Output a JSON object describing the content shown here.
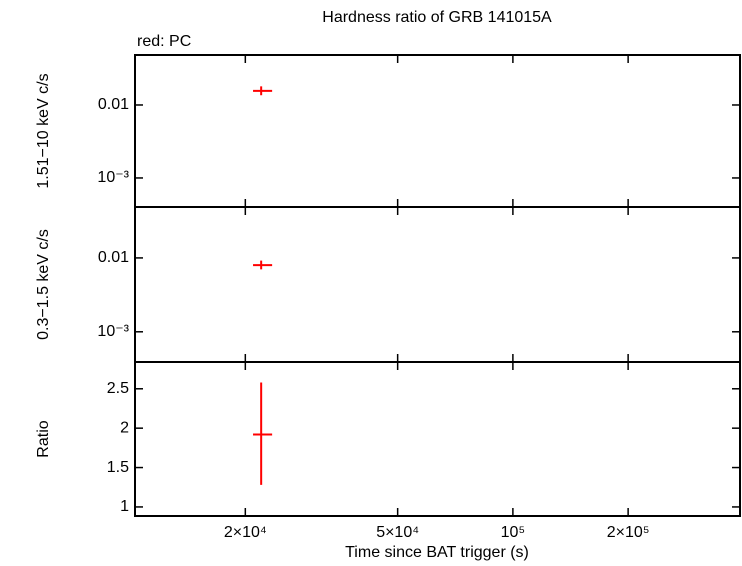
{
  "chart_data": [
    {
      "type": "scatter",
      "title": "Hardness ratio of GRB 141015A",
      "annotation": "red: PC",
      "ylabel": "1.51−10 keV c/s",
      "log_y": true,
      "ylim": [
        0.0004,
        0.0484
      ],
      "yticks": [
        0.01,
        {
          "value": 0.001,
          "label": "10⁻³"
        }
      ],
      "xlim": [
        10300,
        392000
      ],
      "series": [
        {
          "color": "#ff0000",
          "x": [
            22000
          ],
          "x_low": [
            20950
          ],
          "x_high": [
            23500
          ],
          "values": [
            0.0156
          ],
          "y_low": [
            0.0136
          ],
          "y_high": [
            0.018
          ]
        }
      ]
    },
    {
      "type": "scatter",
      "ylabel": "0.3−1.5 keV c/s",
      "log_y": true,
      "ylim": [
        0.00039,
        0.0489
      ],
      "yticks": [
        0.01,
        {
          "value": 0.001,
          "label": "10⁻³"
        }
      ],
      "xlim": [
        10300,
        392000
      ],
      "series": [
        {
          "color": "#ff0000",
          "x": [
            22000
          ],
          "x_low": [
            20950
          ],
          "x_high": [
            23500
          ],
          "values": [
            0.008
          ],
          "y_low": [
            0.007
          ],
          "y_high": [
            0.0092
          ]
        }
      ]
    },
    {
      "type": "scatter",
      "ylabel": "Ratio",
      "xlabel": "Time since BAT trigger (s)",
      "log_y": false,
      "ylim": [
        0.885,
        2.84
      ],
      "yticks": [
        1,
        1.5,
        2,
        2.5
      ],
      "log_x": true,
      "xlim": [
        10300,
        392000
      ],
      "xticks": [
        {
          "value": 20000,
          "label": "2×10⁴"
        },
        {
          "value": 50000,
          "label": "5×10⁴"
        },
        {
          "value": 100000,
          "label": "10⁵"
        },
        {
          "value": 200000,
          "label": "2×10⁵"
        }
      ],
      "series": [
        {
          "color": "#ff0000",
          "x": [
            22000
          ],
          "x_low": [
            20950
          ],
          "x_high": [
            23500
          ],
          "values": [
            1.92
          ],
          "y_low": [
            1.28
          ],
          "y_high": [
            2.58
          ]
        }
      ]
    }
  ]
}
